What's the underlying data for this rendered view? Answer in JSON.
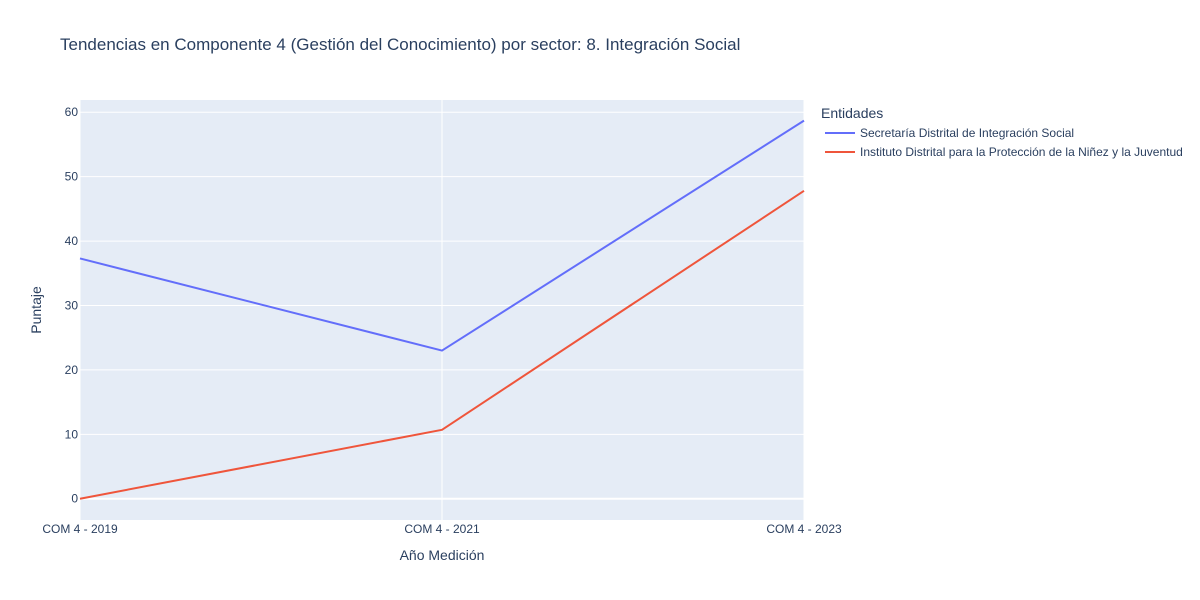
{
  "chart_data": {
    "type": "line",
    "title": "Tendencias en Componente 4 (Gestión del Conocimiento) por sector: 8. Integración Social",
    "xlabel": "Año Medición",
    "ylabel": "Puntaje",
    "categories": [
      "COM 4 - 2019",
      "COM 4 - 2021",
      "COM 4 - 2023"
    ],
    "ylim": [
      -3.3,
      61.9
    ],
    "yticks": [
      0,
      10,
      20,
      30,
      40,
      50,
      60
    ],
    "grid": true,
    "legend": {
      "title": "Entidades",
      "position": "right"
    },
    "series": [
      {
        "name": "Secretaría Distrital de Integración Social",
        "color": "#636efa",
        "values": [
          37.3,
          23.0,
          58.7
        ]
      },
      {
        "name": "Instituto Distrital para la Protección de la Niñez y la Juventud",
        "color": "#ef553b",
        "values": [
          0.0,
          10.7,
          47.8
        ]
      }
    ],
    "colors": {
      "plot_bg": "#e5ecf6",
      "grid": "#ffffff",
      "text": "#2a3f5f"
    }
  }
}
